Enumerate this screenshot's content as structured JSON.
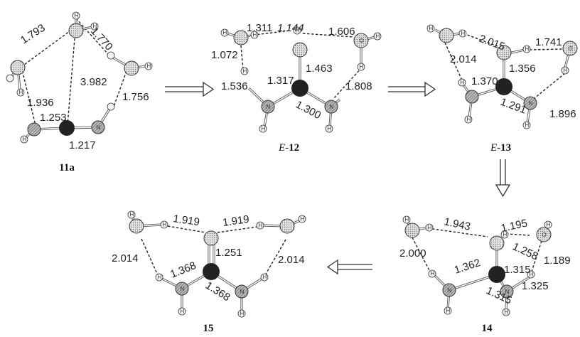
{
  "colors": {
    "carbon": "#222222",
    "oxygen_fill": "#dadada",
    "nitrogen_fill": "#b5b5b5",
    "hydrogen_fill": "#f4f4f4",
    "bond": "#555555",
    "background": "#ffffff"
  },
  "structures": {
    "s11a": {
      "label": "11a",
      "distances": {
        "d1": "1.793",
        "d2": "1.770",
        "d3": "1.936",
        "d4": "3.982",
        "d5": "1.756",
        "d6": "1.253",
        "d7": "1.217"
      }
    },
    "s12": {
      "label_prefix": "E-",
      "label_num": "12",
      "distances": {
        "d1": "1.311",
        "d2": "1.144",
        "d3": "1.606",
        "d4": "1.072",
        "d5": "1.463",
        "d6": "1.536",
        "d7": "1.317",
        "d8": "1.808",
        "d9": "1.300"
      }
    },
    "s13": {
      "label_prefix": "E-",
      "label_num": "13",
      "distances": {
        "d1": "2.015",
        "d2": "1.741",
        "d3": "2.014",
        "d4": "1.356",
        "d5": "1.370",
        "d6": "1.896",
        "d7": "1.291"
      }
    },
    "s14": {
      "label": "14",
      "distances": {
        "d1": "1.943",
        "d2": "1.195",
        "d3": "1.258",
        "d4": "2.000",
        "d5": "1.189",
        "d6": "1.362",
        "d7": "1.315",
        "d8": "1.325",
        "d9": "1.315"
      }
    },
    "s15": {
      "label": "15",
      "distances": {
        "d1": "1.919",
        "d2": "1.919",
        "d3": "1.251",
        "d4": "2.014",
        "d5": "2.014",
        "d6": "1.368",
        "d7": "1.368"
      }
    }
  },
  "atom_labels": {
    "hydrogen": "H",
    "nitrogen": "N",
    "oxygen": "O"
  }
}
